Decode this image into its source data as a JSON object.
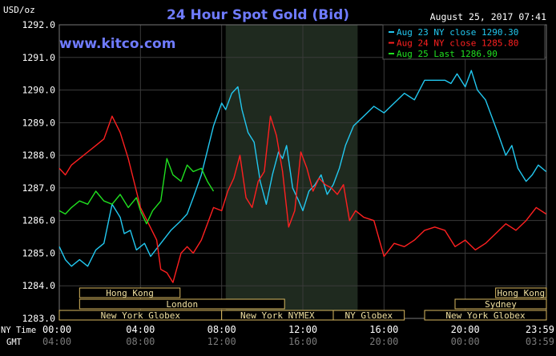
{
  "chart_data": {
    "type": "line",
    "title": "24 Hour Spot Gold (Bid)",
    "unit_label": "USD/oz",
    "timestamp": "August 25, 2017 07:41",
    "watermark": "www.kitco.com",
    "ylim": [
      1283.0,
      1292.0
    ],
    "y_ticks": [
      "1292.0",
      "1291.0",
      "1290.0",
      "1289.0",
      "1288.0",
      "1287.0",
      "1286.0",
      "1285.0",
      "1284.0",
      "1283.0"
    ],
    "x_range_hours": [
      0,
      24
    ],
    "ny_time_label": "NY Time",
    "gmt_label": "GMT",
    "ny_ticks": [
      "00:00",
      "04:00",
      "08:00",
      "12:00",
      "16:00",
      "20:00",
      "23:59"
    ],
    "gmt_ticks": [
      "04:00",
      "08:00",
      "12:00",
      "16:00",
      "20:00",
      "00:00",
      "03:59"
    ],
    "legend": [
      {
        "text": "Aug 23 NY close 1290.30",
        "color": "#22c8f0"
      },
      {
        "text": "Aug 24 NY close 1285.80",
        "color": "#ff2020"
      },
      {
        "text": "Aug 25 Last 1286.90",
        "color": "#20e020"
      }
    ],
    "shaded_region": {
      "start_hour": 8.2,
      "end_hour": 14.7
    },
    "market_sessions": [
      {
        "name": "Hong Kong",
        "start": 1.0,
        "end": 5.95,
        "row": 0
      },
      {
        "name": "Hong Kong",
        "start": 21.5,
        "end": 24.0,
        "row": 0
      },
      {
        "name": "London",
        "start": 1.0,
        "end": 11.1,
        "row": 1
      },
      {
        "name": "Sydney",
        "start": 19.5,
        "end": 24.0,
        "row": 1
      },
      {
        "name": "New York Globex",
        "start": 0.0,
        "end": 8.0,
        "row": 2
      },
      {
        "name": "New York NYMEX",
        "start": 8.0,
        "end": 13.5,
        "row": 2
      },
      {
        "name": "NY Globex",
        "start": 13.5,
        "end": 17.0,
        "row": 2
      },
      {
        "name": "New York Globex",
        "start": 18.0,
        "end": 24.0,
        "row": 2
      }
    ],
    "series": [
      {
        "name": "Aug 23",
        "color": "#22c8f0",
        "x": [
          0,
          0.3,
          0.6,
          1.0,
          1.4,
          1.8,
          2.2,
          2.6,
          3.0,
          3.2,
          3.5,
          3.8,
          4.2,
          4.5,
          5.0,
          5.5,
          6.0,
          6.3,
          6.6,
          7.0,
          7.2,
          7.6,
          8.0,
          8.2,
          8.5,
          8.8,
          9.0,
          9.3,
          9.6,
          9.9,
          10.2,
          10.5,
          10.8,
          11.0,
          11.2,
          11.5,
          11.8,
          12.0,
          12.3,
          12.6,
          12.9,
          13.2,
          13.5,
          13.8,
          14.1,
          14.5,
          15.0,
          15.5,
          16.0,
          16.5,
          17.0,
          17.5,
          18.0,
          18.5,
          19.0,
          19.3,
          19.6,
          20.0,
          20.3,
          20.6,
          21.0,
          21.3,
          21.6,
          22.0,
          22.3,
          22.6,
          23.0,
          23.3,
          23.6,
          23.99
        ],
        "y": [
          1285.2,
          1284.8,
          1284.6,
          1284.8,
          1284.6,
          1285.1,
          1285.3,
          1286.5,
          1286.1,
          1285.6,
          1285.7,
          1285.1,
          1285.3,
          1284.9,
          1285.3,
          1285.7,
          1286.0,
          1286.2,
          1286.7,
          1287.4,
          1287.9,
          1288.9,
          1289.6,
          1289.4,
          1289.9,
          1290.1,
          1289.4,
          1288.7,
          1288.4,
          1287.2,
          1286.5,
          1287.4,
          1288.1,
          1287.9,
          1288.3,
          1287.0,
          1286.6,
          1286.3,
          1286.9,
          1287.1,
          1287.4,
          1286.8,
          1287.1,
          1287.6,
          1288.3,
          1288.9,
          1289.2,
          1289.5,
          1289.3,
          1289.6,
          1289.9,
          1289.7,
          1290.3,
          1290.3,
          1290.3,
          1290.2,
          1290.5,
          1290.1,
          1290.6,
          1290.0,
          1289.7,
          1289.2,
          1288.7,
          1288.0,
          1288.3,
          1287.6,
          1287.2,
          1287.4,
          1287.7,
          1287.5
        ]
      },
      {
        "name": "Aug 24",
        "color": "#ff2020",
        "x": [
          0,
          0.3,
          0.6,
          1.0,
          1.4,
          1.8,
          2.2,
          2.6,
          3.0,
          3.4,
          3.8,
          4.0,
          4.4,
          4.8,
          5.0,
          5.3,
          5.6,
          6.0,
          6.3,
          6.6,
          7.0,
          7.3,
          7.6,
          8.0,
          8.3,
          8.6,
          8.9,
          9.2,
          9.5,
          9.8,
          10.1,
          10.4,
          10.7,
          11.0,
          11.3,
          11.6,
          11.9,
          12.2,
          12.5,
          12.8,
          13.1,
          13.4,
          13.7,
          14.0,
          14.3,
          14.6,
          15.0,
          15.5,
          16.0,
          16.5,
          17.0,
          17.5,
          18.0,
          18.5,
          19.0,
          19.5,
          20.0,
          20.5,
          21.0,
          21.5,
          22.0,
          22.5,
          23.0,
          23.5,
          23.99
        ],
        "y": [
          1287.6,
          1287.4,
          1287.7,
          1287.9,
          1288.1,
          1288.3,
          1288.5,
          1289.2,
          1288.7,
          1287.9,
          1286.9,
          1286.4,
          1285.9,
          1285.4,
          1284.5,
          1284.4,
          1284.1,
          1285.0,
          1285.2,
          1285.0,
          1285.4,
          1285.9,
          1286.4,
          1286.3,
          1286.9,
          1287.3,
          1288.0,
          1286.7,
          1286.4,
          1287.2,
          1287.5,
          1289.2,
          1288.6,
          1287.5,
          1285.8,
          1286.3,
          1288.1,
          1287.6,
          1286.9,
          1287.3,
          1287.1,
          1287.0,
          1286.8,
          1287.1,
          1286.0,
          1286.3,
          1286.1,
          1286.0,
          1284.9,
          1285.3,
          1285.2,
          1285.4,
          1285.7,
          1285.8,
          1285.7,
          1285.2,
          1285.4,
          1285.1,
          1285.3,
          1285.6,
          1285.9,
          1285.7,
          1286.0,
          1286.4,
          1286.2
        ]
      },
      {
        "name": "Aug 25",
        "color": "#20e020",
        "x": [
          0,
          0.3,
          0.6,
          1.0,
          1.4,
          1.8,
          2.2,
          2.6,
          3.0,
          3.4,
          3.8,
          4.0,
          4.3,
          4.6,
          5.0,
          5.3,
          5.6,
          6.0,
          6.3,
          6.6,
          7.0,
          7.3,
          7.6
        ],
        "y": [
          1286.3,
          1286.2,
          1286.4,
          1286.6,
          1286.5,
          1286.9,
          1286.6,
          1286.5,
          1286.8,
          1286.4,
          1286.7,
          1286.3,
          1285.9,
          1286.3,
          1286.6,
          1287.9,
          1287.4,
          1287.2,
          1287.7,
          1287.5,
          1287.6,
          1287.2,
          1286.9
        ]
      }
    ]
  }
}
